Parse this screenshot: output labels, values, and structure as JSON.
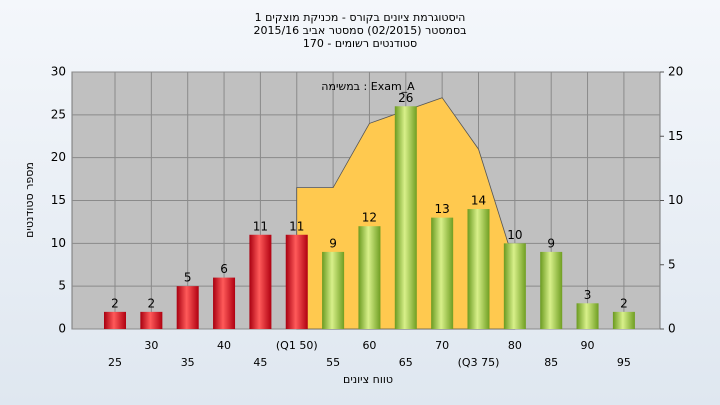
{
  "chart_data": {
    "type": "bar",
    "title": "היסטוגרמת ציונים בקורס - מכניקת מוצקים 1",
    "subtitle": "בסמסטר  (02/2015)  סמסטר אביב 2015/16",
    "subtitle2": "סטודנטים רשומים - 170",
    "annotation": "במשימה : Exam_A",
    "y_label": "מספר סטודנטים",
    "x_label": "טווח ציונים",
    "categories": [
      "25",
      "30",
      "35",
      "40",
      "45",
      "(Q1 50)",
      "55",
      "60",
      "65",
      "70",
      "(Q3 75)",
      "80",
      "85",
      "90",
      "95"
    ],
    "values": [
      2,
      2,
      5,
      6,
      11,
      11,
      9,
      12,
      26,
      13,
      14,
      10,
      9,
      3,
      2
    ],
    "colors": [
      "red",
      "red",
      "red",
      "red",
      "red",
      "red",
      "green",
      "green",
      "green",
      "green",
      "green",
      "green",
      "green",
      "green",
      "green"
    ],
    "area": {
      "color": "#ffc94f",
      "axis": "y2",
      "values": [
        null,
        null,
        null,
        null,
        null,
        11,
        11,
        16,
        17,
        18,
        14,
        5,
        null,
        null,
        null
      ]
    },
    "ylim": [
      0,
      30
    ],
    "yticks": [
      0,
      5,
      10,
      15,
      20,
      25,
      30
    ],
    "y2lim": [
      0,
      20
    ],
    "y2ticks": [
      0,
      5,
      10,
      15,
      20
    ],
    "grid": true
  }
}
